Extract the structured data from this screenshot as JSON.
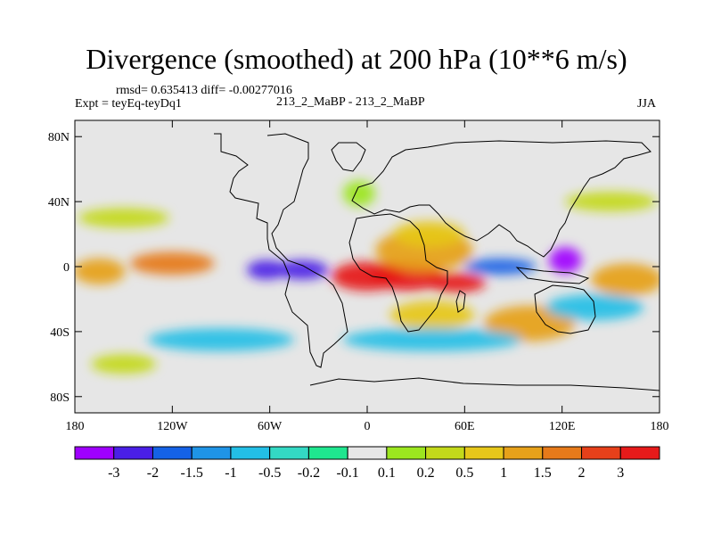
{
  "chart_data": {
    "type": "heatmap",
    "title": "Divergence (smoothed) at 200 hPa (10**6 m/s)",
    "stats_text": "rmsd= 0.635413 diff= -0.00277016",
    "experiment_text": "Expt = teyEq-teyDq1",
    "subtitle": "213_2_MaBP - 213_2_MaBP",
    "season": "JJA",
    "x_range": [
      -180,
      180
    ],
    "y_range": [
      -90,
      90
    ],
    "x_ticks": [
      {
        "value": -180,
        "label": "180"
      },
      {
        "value": -120,
        "label": "120W"
      },
      {
        "value": -60,
        "label": "60W"
      },
      {
        "value": 0,
        "label": "0"
      },
      {
        "value": 60,
        "label": "60E"
      },
      {
        "value": 120,
        "label": "120E"
      },
      {
        "value": 180,
        "label": "180"
      }
    ],
    "y_ticks": [
      {
        "value": 80,
        "label": "80N"
      },
      {
        "value": 40,
        "label": "40N"
      },
      {
        "value": 0,
        "label": "0"
      },
      {
        "value": -40,
        "label": "40S"
      },
      {
        "value": -80,
        "label": "80S"
      }
    ],
    "colorbar": {
      "colors": [
        "#9f00ff",
        "#4a1fe6",
        "#1562e6",
        "#1f94e6",
        "#23bfe6",
        "#33d9c4",
        "#1fe68f",
        "#e6e6e6",
        "#9ce61f",
        "#c3d91a",
        "#e6c71a",
        "#e6a11a",
        "#e67a1a",
        "#e6401a",
        "#e61a1a"
      ],
      "labels": [
        "-3",
        "-2",
        "-1.5",
        "-1",
        "-0.5",
        "-0.2",
        "-0.1",
        "0.1",
        "0.2",
        "0.5",
        "1",
        "1.5",
        "2",
        "3"
      ]
    },
    "features": [
      {
        "lon": 0,
        "lat": -6,
        "w": 22,
        "h": 9,
        "level": 14
      },
      {
        "lon": 25,
        "lat": -6,
        "w": 22,
        "h": 9,
        "level": 14
      },
      {
        "lon": 55,
        "lat": -10,
        "w": 18,
        "h": 6,
        "level": 14
      },
      {
        "lon": 35,
        "lat": 10,
        "w": 30,
        "h": 13,
        "level": 11
      },
      {
        "lon": 38,
        "lat": 20,
        "w": 22,
        "h": 8,
        "level": 10
      },
      {
        "lon": -40,
        "lat": -2,
        "w": 16,
        "h": 6,
        "level": 1
      },
      {
        "lon": -62,
        "lat": -2,
        "w": 12,
        "h": 6,
        "level": 1
      },
      {
        "lon": 82,
        "lat": 0,
        "w": 22,
        "h": 5,
        "level": 2
      },
      {
        "lon": 122,
        "lat": 4,
        "w": 10,
        "h": 8,
        "level": 0
      },
      {
        "lon": -120,
        "lat": 2,
        "w": 26,
        "h": 7,
        "level": 12
      },
      {
        "lon": -165,
        "lat": -3,
        "w": 16,
        "h": 8,
        "level": 11
      },
      {
        "lon": 160,
        "lat": -8,
        "w": 22,
        "h": 10,
        "level": 11
      },
      {
        "lon": 100,
        "lat": -35,
        "w": 28,
        "h": 11,
        "level": 11
      },
      {
        "lon": 40,
        "lat": -30,
        "w": 26,
        "h": 9,
        "level": 10
      },
      {
        "lon": -90,
        "lat": -45,
        "w": 45,
        "h": 7,
        "level": 4
      },
      {
        "lon": 40,
        "lat": -45,
        "w": 55,
        "h": 7,
        "level": 4
      },
      {
        "lon": 140,
        "lat": -25,
        "w": 30,
        "h": 8,
        "level": 4
      },
      {
        "lon": -150,
        "lat": 30,
        "w": 28,
        "h": 6,
        "level": 9
      },
      {
        "lon": 150,
        "lat": 40,
        "w": 28,
        "h": 6,
        "level": 9
      },
      {
        "lon": -5,
        "lat": 45,
        "w": 10,
        "h": 8,
        "level": 8
      },
      {
        "lon": -150,
        "lat": -60,
        "w": 20,
        "h": 6,
        "level": 9
      }
    ]
  }
}
